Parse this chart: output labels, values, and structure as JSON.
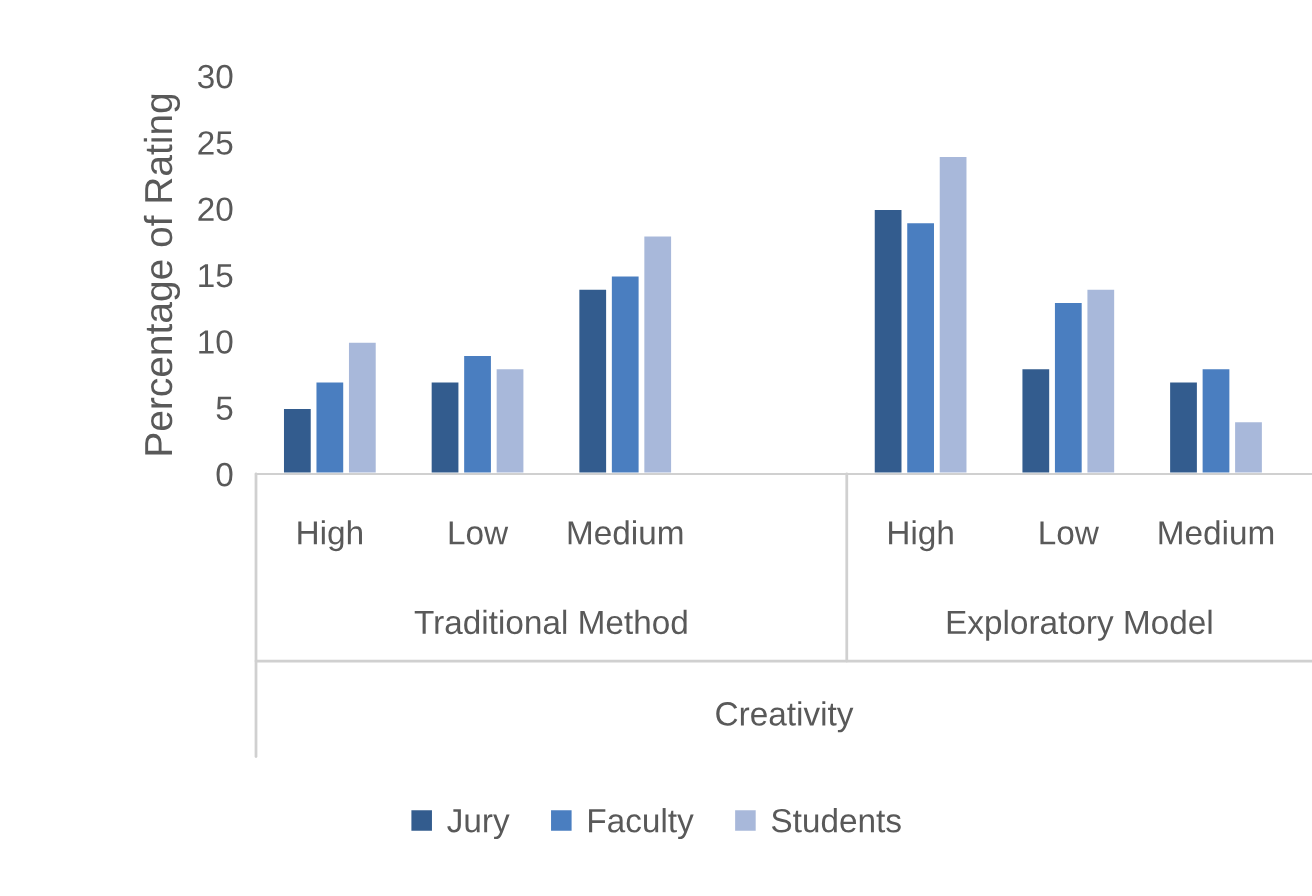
{
  "chart_data": {
    "type": "bar",
    "ylabel": "Percentage of Rating",
    "categories": [
      "High",
      "Low",
      "Medium",
      null,
      "High",
      "Low",
      "Medium"
    ],
    "series": [
      {
        "name": "Jury",
        "color": "#335c8e",
        "values": [
          5,
          7,
          14,
          null,
          20,
          8,
          7
        ]
      },
      {
        "name": "Faculty",
        "color": "#4a7ec0",
        "values": [
          7,
          9,
          15,
          null,
          19,
          13,
          8
        ]
      },
      {
        "name": "Students",
        "color": "#a8b8da",
        "values": [
          10,
          8,
          18,
          null,
          24,
          14,
          4
        ]
      }
    ],
    "annotations": [
      "Traditional Method",
      "Exploratory Model",
      "Creativity"
    ],
    "ylim": [
      0,
      30
    ],
    "yticks": [
      0,
      5,
      10,
      15,
      20,
      25,
      30
    ],
    "grid": false,
    "legend": "bottom"
  }
}
